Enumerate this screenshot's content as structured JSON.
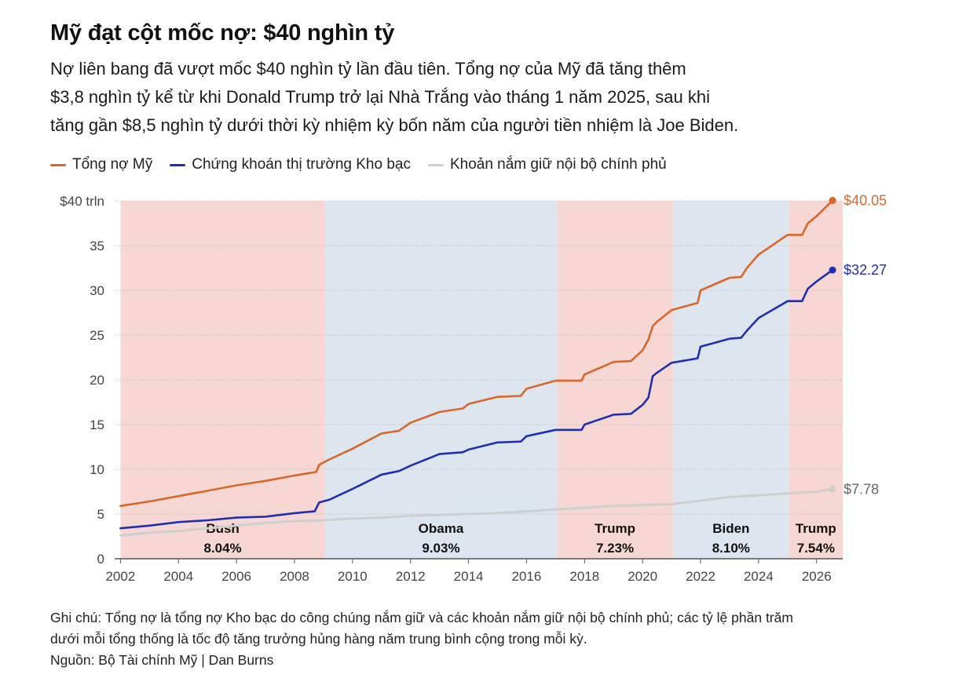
{
  "title": "Mỹ đạt cột mốc nợ: $40 nghìn tỷ",
  "subtitle_lines": [
    "Nợ liên bang đã vượt mốc $40 nghìn tỷ lần đầu tiên. Tổng nợ của Mỹ đã tăng thêm",
    "$3,8 nghìn tỷ kể từ khi Donald Trump trở lại Nhà Trắng vào tháng 1 năm 2025, sau khi",
    "tăng gần $8,5 nghìn tỷ dưới thời kỳ nhiệm kỳ bốn năm của người tiền nhiệm là Joe Biden."
  ],
  "notes_lines": [
    "Ghi chú: Tổng nợ là tổng nợ Kho bạc do công chúng nắm giữ và các khoản nắm giữ nội bộ chính phủ; các tỷ lệ phần trăm",
    "dưới mỗi tổng thống là tốc độ tăng trưởng hủng hàng năm trung bình cộng trong mỗi kỳ."
  ],
  "source": "Nguồn: Bộ Tài chính Mỹ | Dan Burns",
  "colors": {
    "total": "#d8672a",
    "marketable": "#1f2fae",
    "intragov": "#cfcfcf",
    "republican_band": "#f7d7d3",
    "democrat_band": "#dde5ef"
  },
  "chart_data": {
    "type": "line",
    "xlim": [
      2001.8,
      2026.9
    ],
    "ylim": [
      0,
      40
    ],
    "x_ticks": [
      2002,
      2004,
      2006,
      2008,
      2010,
      2012,
      2014,
      2016,
      2018,
      2020,
      2022,
      2024,
      2026
    ],
    "y_ticks": [
      {
        "value": 0,
        "label": "0"
      },
      {
        "value": 5,
        "label": "5"
      },
      {
        "value": 10,
        "label": "10"
      },
      {
        "value": 15,
        "label": "15"
      },
      {
        "value": 20,
        "label": "20"
      },
      {
        "value": 25,
        "label": "25"
      },
      {
        "value": 30,
        "label": "30"
      },
      {
        "value": 35,
        "label": "35"
      },
      {
        "value": 40,
        "label": "$40 trln"
      }
    ],
    "periods": [
      {
        "name": "Bush",
        "rate": "8.04%",
        "start": 2002.0,
        "end": 2009.05,
        "party": "republican"
      },
      {
        "name": "Obama",
        "rate": "9.03%",
        "start": 2009.05,
        "end": 2017.05,
        "party": "democrat"
      },
      {
        "name": "Trump",
        "rate": "7.23%",
        "start": 2017.05,
        "end": 2021.05,
        "party": "republican"
      },
      {
        "name": "Biden",
        "rate": "8.10%",
        "start": 2021.05,
        "end": 2025.05,
        "party": "democrat"
      },
      {
        "name": "Trump",
        "rate": "7.54%",
        "start": 2025.05,
        "end": 2026.9,
        "party": "republican"
      }
    ],
    "series": [
      {
        "name": "Tổng nợ Mỹ",
        "key": "total",
        "end_label": "$40.05",
        "points": [
          [
            2002.0,
            5.9
          ],
          [
            2003.0,
            6.4
          ],
          [
            2004.0,
            7.0
          ],
          [
            2005.0,
            7.6
          ],
          [
            2006.0,
            8.2
          ],
          [
            2007.0,
            8.7
          ],
          [
            2008.0,
            9.3
          ],
          [
            2008.75,
            9.7
          ],
          [
            2008.85,
            10.5
          ],
          [
            2009.2,
            11.1
          ],
          [
            2010.0,
            12.3
          ],
          [
            2011.0,
            14.0
          ],
          [
            2011.6,
            14.3
          ],
          [
            2012.0,
            15.2
          ],
          [
            2013.0,
            16.4
          ],
          [
            2013.8,
            16.8
          ],
          [
            2014.0,
            17.3
          ],
          [
            2015.0,
            18.1
          ],
          [
            2015.8,
            18.2
          ],
          [
            2016.0,
            19.0
          ],
          [
            2017.0,
            19.9
          ],
          [
            2017.9,
            19.9
          ],
          [
            2018.0,
            20.6
          ],
          [
            2019.0,
            22.0
          ],
          [
            2019.6,
            22.1
          ],
          [
            2020.0,
            23.3
          ],
          [
            2020.2,
            24.5
          ],
          [
            2020.35,
            26.0
          ],
          [
            2020.5,
            26.5
          ],
          [
            2021.0,
            27.8
          ],
          [
            2021.9,
            28.6
          ],
          [
            2022.0,
            30.0
          ],
          [
            2023.0,
            31.4
          ],
          [
            2023.4,
            31.5
          ],
          [
            2023.6,
            32.5
          ],
          [
            2024.0,
            34.0
          ],
          [
            2025.0,
            36.2
          ],
          [
            2025.5,
            36.2
          ],
          [
            2025.7,
            37.5
          ],
          [
            2026.0,
            38.3
          ],
          [
            2026.55,
            40.05
          ]
        ]
      },
      {
        "name": "Chứng khoán thị trường Kho bạc",
        "key": "marketable",
        "end_label": "$32.27",
        "points": [
          [
            2002.0,
            3.4
          ],
          [
            2003.0,
            3.7
          ],
          [
            2004.0,
            4.1
          ],
          [
            2005.0,
            4.3
          ],
          [
            2006.0,
            4.6
          ],
          [
            2007.0,
            4.7
          ],
          [
            2008.0,
            5.1
          ],
          [
            2008.7,
            5.3
          ],
          [
            2008.85,
            6.3
          ],
          [
            2009.2,
            6.6
          ],
          [
            2010.0,
            7.8
          ],
          [
            2011.0,
            9.4
          ],
          [
            2011.6,
            9.8
          ],
          [
            2012.0,
            10.4
          ],
          [
            2013.0,
            11.7
          ],
          [
            2013.8,
            11.9
          ],
          [
            2014.0,
            12.2
          ],
          [
            2015.0,
            13.0
          ],
          [
            2015.8,
            13.1
          ],
          [
            2016.0,
            13.7
          ],
          [
            2017.0,
            14.4
          ],
          [
            2017.9,
            14.4
          ],
          [
            2018.0,
            15.0
          ],
          [
            2019.0,
            16.1
          ],
          [
            2019.6,
            16.2
          ],
          [
            2020.0,
            17.2
          ],
          [
            2020.2,
            18.0
          ],
          [
            2020.35,
            20.4
          ],
          [
            2020.5,
            20.8
          ],
          [
            2021.0,
            21.9
          ],
          [
            2021.9,
            22.4
          ],
          [
            2022.0,
            23.7
          ],
          [
            2023.0,
            24.6
          ],
          [
            2023.4,
            24.7
          ],
          [
            2023.6,
            25.5
          ],
          [
            2024.0,
            26.9
          ],
          [
            2025.0,
            28.8
          ],
          [
            2025.5,
            28.8
          ],
          [
            2025.7,
            30.2
          ],
          [
            2026.0,
            31.0
          ],
          [
            2026.55,
            32.27
          ]
        ]
      },
      {
        "name": "Khoản nắm giữ nội bộ chính phủ",
        "key": "intragov",
        "end_label": "$7.78",
        "points": [
          [
            2002.0,
            2.6
          ],
          [
            2003.0,
            2.9
          ],
          [
            2004.0,
            3.1
          ],
          [
            2005.0,
            3.4
          ],
          [
            2006.0,
            3.7
          ],
          [
            2007.0,
            4.0
          ],
          [
            2008.0,
            4.2
          ],
          [
            2009.0,
            4.3
          ],
          [
            2010.0,
            4.5
          ],
          [
            2011.0,
            4.6
          ],
          [
            2012.0,
            4.8
          ],
          [
            2013.0,
            4.9
          ],
          [
            2014.0,
            5.0
          ],
          [
            2015.0,
            5.1
          ],
          [
            2016.0,
            5.3
          ],
          [
            2017.0,
            5.5
          ],
          [
            2018.0,
            5.7
          ],
          [
            2019.0,
            5.9
          ],
          [
            2020.0,
            6.0
          ],
          [
            2021.0,
            6.1
          ],
          [
            2022.0,
            6.5
          ],
          [
            2023.0,
            6.9
          ],
          [
            2024.0,
            7.1
          ],
          [
            2025.0,
            7.3
          ],
          [
            2026.0,
            7.5
          ],
          [
            2026.55,
            7.78
          ]
        ]
      }
    ]
  }
}
